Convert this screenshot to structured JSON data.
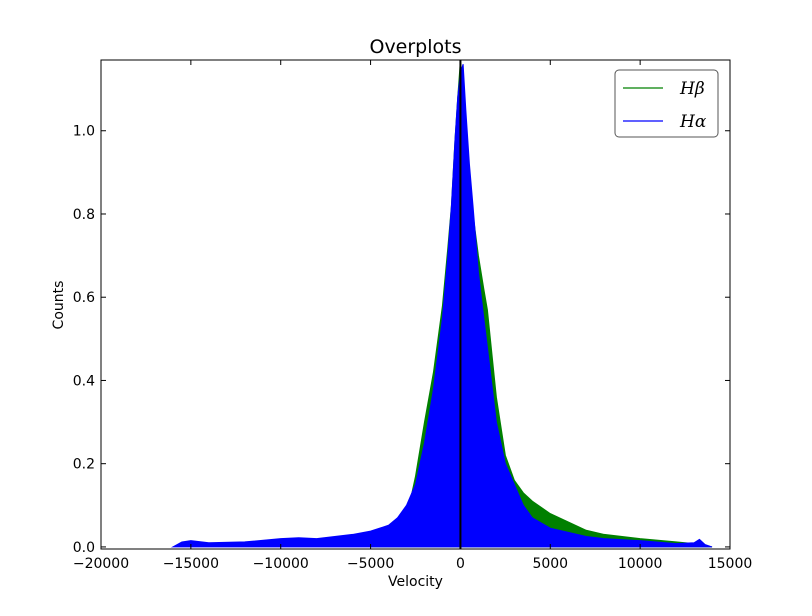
{
  "chart_data": {
    "type": "area",
    "title": "Overplots",
    "xlabel": "Velocity",
    "ylabel": "Counts",
    "xlim": [
      -20000,
      15000
    ],
    "ylim": [
      -0.005,
      1.17
    ],
    "xticks": [
      -20000,
      -15000,
      -10000,
      -5000,
      0,
      5000,
      10000,
      15000
    ],
    "xtick_labels": [
      "−20000",
      "−15000",
      "−10000",
      "−5000",
      "0",
      "5000",
      "10000",
      "15000"
    ],
    "yticks": [
      0.0,
      0.2,
      0.4,
      0.6,
      0.8,
      1.0
    ],
    "ytick_labels": [
      "0.0",
      "0.2",
      "0.4",
      "0.6",
      "0.8",
      "1.0"
    ],
    "grid": false,
    "legend_position": "top-right",
    "vertical_line_x": 0,
    "series": [
      {
        "name": "Hβ",
        "color": "#008000",
        "x": [
          -5000,
          -4500,
          -4000,
          -3500,
          -3000,
          -2700,
          -2500,
          -2000,
          -1500,
          -1000,
          -700,
          -500,
          -300,
          -150,
          0,
          150,
          300,
          500,
          700,
          1000,
          1300,
          1500,
          2000,
          2500,
          3000,
          3500,
          4000,
          5000,
          6000,
          7000,
          8000,
          10000,
          12000,
          13000,
          14000
        ],
        "values": [
          0.0,
          0.01,
          0.02,
          0.04,
          0.08,
          0.13,
          0.17,
          0.3,
          0.42,
          0.58,
          0.72,
          0.82,
          0.98,
          1.08,
          1.17,
          1.1,
          1.0,
          0.9,
          0.8,
          0.7,
          0.62,
          0.57,
          0.36,
          0.22,
          0.16,
          0.13,
          0.11,
          0.08,
          0.06,
          0.04,
          0.03,
          0.02,
          0.012,
          0.008,
          0.0
        ]
      },
      {
        "name": "Hα",
        "color": "#0000ff",
        "x": [
          -16000,
          -15500,
          -15000,
          -14000,
          -12000,
          -10000,
          -9000,
          -8000,
          -7000,
          -6000,
          -5000,
          -4000,
          -3500,
          -3000,
          -2500,
          -2000,
          -1500,
          -1000,
          -700,
          -500,
          -300,
          -150,
          0,
          150,
          300,
          500,
          700,
          1000,
          1300,
          1500,
          2000,
          2500,
          3000,
          3500,
          4000,
          5000,
          6000,
          7000,
          8000,
          10000,
          12000,
          13000,
          13300,
          13600,
          14000
        ],
        "values": [
          0.0,
          0.012,
          0.015,
          0.01,
          0.012,
          0.02,
          0.022,
          0.02,
          0.025,
          0.03,
          0.038,
          0.052,
          0.07,
          0.1,
          0.15,
          0.25,
          0.38,
          0.55,
          0.7,
          0.82,
          0.98,
          1.08,
          1.14,
          1.16,
          1.05,
          0.92,
          0.82,
          0.66,
          0.55,
          0.48,
          0.3,
          0.2,
          0.15,
          0.1,
          0.07,
          0.045,
          0.035,
          0.025,
          0.02,
          0.015,
          0.008,
          0.01,
          0.018,
          0.006,
          0.0
        ]
      }
    ]
  }
}
